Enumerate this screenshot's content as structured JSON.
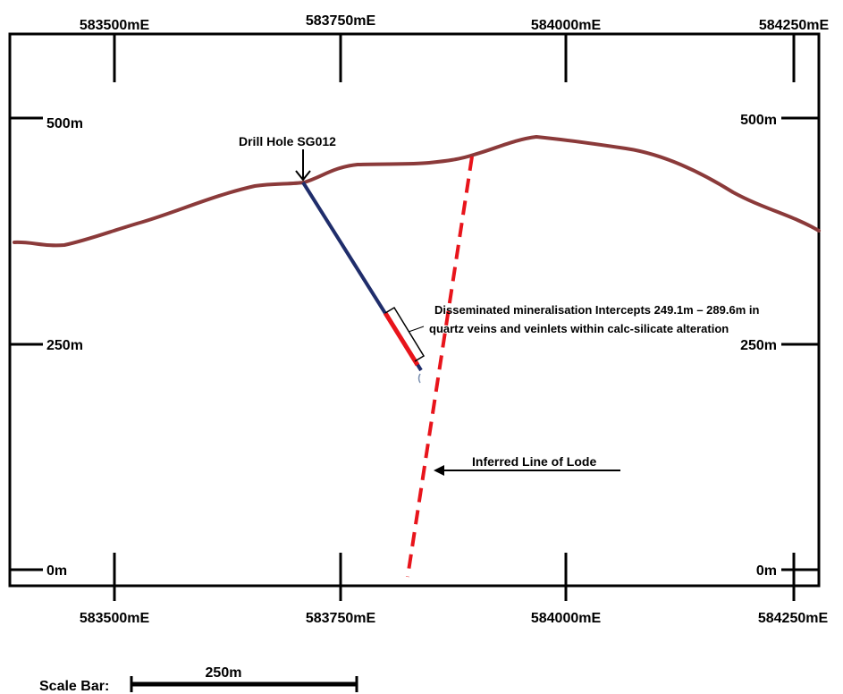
{
  "easting_labels": [
    "583500mE",
    "583750mE",
    "584000mE",
    "584250mE"
  ],
  "elevation_labels": [
    "500m",
    "250m",
    "0m"
  ],
  "drill_hole_label": "Drill Hole SG012",
  "intercept_note_line1": "Disseminated mineralisation Intercepts 249.1m – 289.6m in",
  "intercept_note_line2": "quartz veins and veinlets within calc-silicate alteration",
  "lode_label": "Inferred Line of Lode",
  "scale_bar_label": "Scale Bar:",
  "scale_bar_length": "250m",
  "colors": {
    "frame": "#000000",
    "topography": "#8b3a3a",
    "drill_trace": "#1f2d6b",
    "intercept": "#e8141b",
    "lode": "#e8141b"
  }
}
